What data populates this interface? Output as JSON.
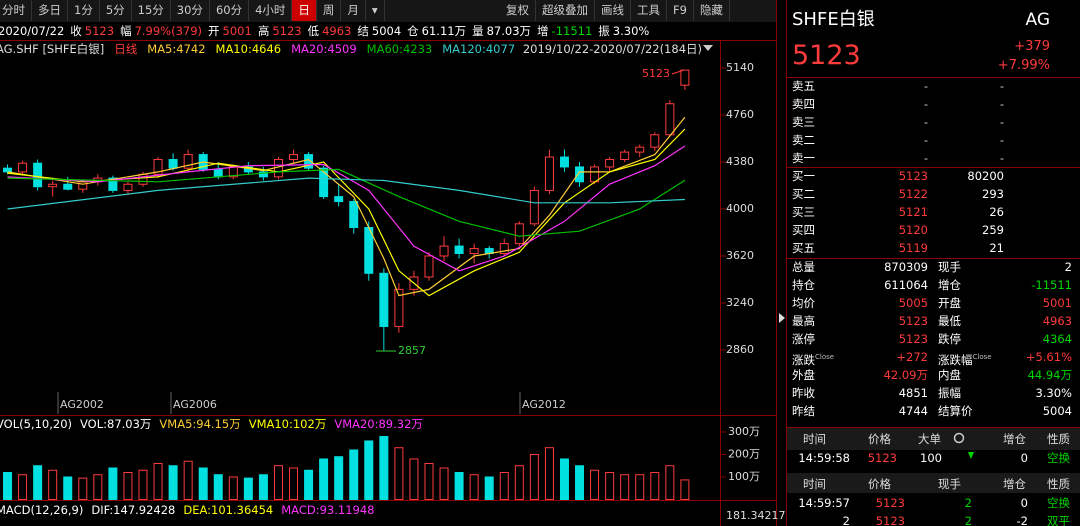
{
  "toolbar": {
    "left": [
      "分时",
      "多日",
      "1分",
      "5分",
      "15分",
      "30分",
      "60分",
      "4小时",
      "日",
      "周",
      "月",
      "▾"
    ],
    "active_index": 8,
    "right": [
      "复权",
      "超级叠加",
      "画线",
      "工具",
      "F9",
      "隐藏"
    ]
  },
  "info_bar": {
    "date": "2020/07/22",
    "items": [
      {
        "label": "收",
        "value": "5123",
        "color": "#ff3b3b"
      },
      {
        "label": "幅",
        "value": "7.99%(379)",
        "color": "#ff3b3b"
      },
      {
        "label": "开",
        "value": "5001",
        "color": "#ff3b3b"
      },
      {
        "label": "高",
        "value": "5123",
        "color": "#ff3b3b"
      },
      {
        "label": "低",
        "value": "4963",
        "color": "#ff3b3b"
      },
      {
        "label": "结",
        "value": "5004",
        "color": "#ffffff"
      },
      {
        "label": "仓",
        "value": "61.11万",
        "color": "#ffffff"
      },
      {
        "label": "量",
        "value": "87.03万",
        "color": "#ffffff"
      },
      {
        "label": "增",
        "value": "-11511",
        "color": "#00d800"
      },
      {
        "label": "振",
        "value": "3.30%",
        "color": "#ffffff"
      }
    ]
  },
  "chart_data": [
    {
      "type": "candlestick",
      "title": "AG.SHF [SHFE白银]",
      "period": "日线",
      "period_color": "#ff3b3b",
      "date_range": "2019/10/22-2020/07/22(184日)",
      "up_color": "#ff3b3b",
      "down_color": "#00e0e0",
      "ylim": [
        2698,
        5237
      ],
      "yticks": [
        2860,
        3240,
        3620,
        4000,
        4380,
        4760,
        5140
      ],
      "xlim": [
        -0.5,
        47.2
      ],
      "grid": false,
      "candles": [
        [
          4330,
          4360,
          4280,
          4300
        ],
        [
          4300,
          4390,
          4280,
          4370
        ],
        [
          4370,
          4400,
          4150,
          4180
        ],
        [
          4180,
          4230,
          4100,
          4200
        ],
        [
          4200,
          4260,
          4150,
          4160
        ],
        [
          4160,
          4240,
          4130,
          4220
        ],
        [
          4220,
          4280,
          4190,
          4250
        ],
        [
          4250,
          4270,
          4130,
          4150
        ],
        [
          4150,
          4220,
          4120,
          4200
        ],
        [
          4200,
          4300,
          4180,
          4280
        ],
        [
          4280,
          4420,
          4250,
          4400
        ],
        [
          4400,
          4450,
          4310,
          4330
        ],
        [
          4330,
          4480,
          4300,
          4440
        ],
        [
          4440,
          4460,
          4300,
          4320
        ],
        [
          4320,
          4380,
          4240,
          4260
        ],
        [
          4260,
          4360,
          4240,
          4340
        ],
        [
          4340,
          4380,
          4280,
          4300
        ],
        [
          4300,
          4340,
          4230,
          4260
        ],
        [
          4260,
          4420,
          4240,
          4400
        ],
        [
          4400,
          4480,
          4370,
          4440
        ],
        [
          4440,
          4460,
          4310,
          4330
        ],
        [
          4330,
          4350,
          4080,
          4100
        ],
        [
          4100,
          4200,
          4020,
          4060
        ],
        [
          4060,
          4080,
          3800,
          3850
        ],
        [
          3850,
          3900,
          3420,
          3480
        ],
        [
          3480,
          3520,
          2857,
          3050
        ],
        [
          3050,
          3400,
          3000,
          3350
        ],
        [
          3350,
          3500,
          3300,
          3450
        ],
        [
          3450,
          3650,
          3420,
          3620
        ],
        [
          3620,
          3780,
          3580,
          3700
        ],
        [
          3700,
          3760,
          3600,
          3640
        ],
        [
          3640,
          3720,
          3560,
          3680
        ],
        [
          3680,
          3700,
          3600,
          3640
        ],
        [
          3640,
          3760,
          3620,
          3720
        ],
        [
          3720,
          3900,
          3700,
          3880
        ],
        [
          3880,
          4180,
          3860,
          4150
        ],
        [
          4150,
          4480,
          4120,
          4420
        ],
        [
          4420,
          4480,
          4300,
          4340
        ],
        [
          4340,
          4380,
          4180,
          4220
        ],
        [
          4220,
          4360,
          4200,
          4340
        ],
        [
          4340,
          4420,
          4300,
          4400
        ],
        [
          4400,
          4480,
          4380,
          4460
        ],
        [
          4460,
          4520,
          4420,
          4500
        ],
        [
          4500,
          4620,
          4470,
          4600
        ],
        [
          4600,
          4880,
          4580,
          4851
        ],
        [
          5001,
          5123,
          4963,
          5123
        ]
      ],
      "series": [
        {
          "name": "MA5:4742",
          "color": "#ffcc33",
          "x": [
            0,
            5,
            10,
            13,
            17,
            20,
            23,
            25,
            26,
            28,
            31,
            34,
            36,
            38,
            40,
            43,
            45
          ],
          "values": [
            4300,
            4200,
            4300,
            4380,
            4310,
            4400,
            4100,
            3600,
            3300,
            3350,
            3620,
            3680,
            3950,
            4300,
            4300,
            4440,
            4742
          ]
        },
        {
          "name": "MA10:4646",
          "color": "#ffff00",
          "x": [
            0,
            5,
            10,
            14,
            18,
            21,
            24,
            26,
            28,
            31,
            34,
            37,
            40,
            43,
            45
          ],
          "values": [
            4290,
            4220,
            4260,
            4370,
            4300,
            4380,
            4000,
            3500,
            3300,
            3500,
            3650,
            4050,
            4300,
            4400,
            4646
          ]
        },
        {
          "name": "MA20:4509",
          "color": "#ff33ff",
          "x": [
            0,
            6,
            12,
            16,
            21,
            24,
            27,
            30,
            33,
            37,
            40,
            43,
            45
          ],
          "values": [
            4260,
            4220,
            4300,
            4350,
            4360,
            4150,
            3700,
            3500,
            3620,
            3900,
            4200,
            4350,
            4509
          ]
        },
        {
          "name": "MA60:4233",
          "color": "#00c000",
          "x": [
            0,
            10,
            18,
            22,
            26,
            30,
            34,
            38,
            42,
            45
          ],
          "values": [
            4250,
            4220,
            4300,
            4320,
            4100,
            3900,
            3780,
            3820,
            4000,
            4233
          ]
        },
        {
          "name": "MA120:4077",
          "color": "#33cccc",
          "x": [
            0,
            10,
            20,
            25,
            30,
            35,
            40,
            45
          ],
          "values": [
            4000,
            4150,
            4250,
            4230,
            4150,
            4050,
            4050,
            4077
          ]
        }
      ],
      "annotations": [
        "5123",
        "2857"
      ],
      "contract_labels": [
        "AG2002",
        "AG2006",
        "AG2012"
      ]
    },
    {
      "type": "bar",
      "title": "VOL(5,10,20)",
      "legend": [
        {
          "name": "VOL:87.03万",
          "color": "#ffffff"
        },
        {
          "name": "VMA5:94.15万",
          "color": "#ffcc33"
        },
        {
          "name": "VMA10:102万",
          "color": "#ffff00"
        },
        {
          "name": "VMA20:89.32万",
          "color": "#ff33ff"
        }
      ],
      "values": [
        120,
        110,
        150,
        130,
        100,
        95,
        110,
        140,
        120,
        130,
        160,
        150,
        170,
        140,
        110,
        100,
        95,
        110,
        150,
        140,
        130,
        180,
        190,
        220,
        260,
        280,
        230,
        180,
        160,
        140,
        120,
        110,
        100,
        120,
        150,
        200,
        230,
        180,
        150,
        130,
        120,
        110,
        110,
        120,
        150,
        87.03
      ],
      "ylim": [
        0,
        362
      ],
      "yticks": [
        {
          "value": 100,
          "label": "100万"
        },
        {
          "value": 200,
          "label": "200万"
        },
        {
          "value": 300,
          "label": "300万"
        }
      ]
    },
    {
      "type": "macd",
      "title": "MACD(12,26,9)",
      "legend": [
        {
          "name": "DIF:147.92428",
          "color": "#ffffff"
        },
        {
          "name": "DEA:101.36454",
          "color": "#ffff00"
        },
        {
          "name": "MACD:93.11948",
          "color": "#ff33ff"
        }
      ],
      "top_value": 181.34217
    }
  ],
  "quote_panel": {
    "name": "SHFE白银",
    "code": "AG",
    "price": "5123",
    "change": "+379",
    "change_pct": "+7.99%",
    "order_book": [
      {
        "label": "卖五",
        "price": "-",
        "volume": "-"
      },
      {
        "label": "卖四",
        "price": "-",
        "volume": "-"
      },
      {
        "label": "卖三",
        "price": "-",
        "volume": "-"
      },
      {
        "label": "卖二",
        "price": "-",
        "volume": "-"
      },
      {
        "label": "卖一",
        "price": "-",
        "volume": "-"
      },
      {
        "label": "买一",
        "price": "5123",
        "volume": "80200"
      },
      {
        "label": "买二",
        "price": "5122",
        "volume": "293"
      },
      {
        "label": "买三",
        "price": "5121",
        "volume": "26"
      },
      {
        "label": "买四",
        "price": "5120",
        "volume": "259"
      },
      {
        "label": "买五",
        "price": "5119",
        "volume": "21"
      }
    ],
    "stats": [
      {
        "label": "总量",
        "value": "870309",
        "color": "#ffffff",
        "label2": "现手",
        "value2": "2",
        "color2": "#ffffff"
      },
      {
        "label": "持仓",
        "value": "611064",
        "color": "#ffffff",
        "label2": "增仓",
        "value2": "-11511",
        "color2": "#00d800"
      },
      {
        "label": "均价",
        "value": "5005",
        "color": "#ff3b3b",
        "label2": "开盘",
        "value2": "5001",
        "color2": "#ff3b3b"
      },
      {
        "label": "最高",
        "value": "5123",
        "color": "#ff3b3b",
        "label2": "最低",
        "value2": "4963",
        "color2": "#ff3b3b"
      },
      {
        "label": "涨停",
        "value": "5123",
        "color": "#ff3b3b",
        "label2": "跌停",
        "value2": "4364",
        "color2": "#00d800"
      },
      {
        "label": "涨跌",
        "sup": "Close",
        "value": "+272",
        "color": "#ff3b3b",
        "label2": "涨跌幅",
        "sup2": "Close",
        "value2": "+5.61%",
        "color2": "#ff3b3b"
      },
      {
        "label": "外盘",
        "value": "42.09万",
        "color": "#ff3b3b",
        "label2": "内盘",
        "value2": "44.94万",
        "color2": "#00d800"
      },
      {
        "label": "昨收",
        "value": "4851",
        "color": "#ffffff",
        "label2": "振幅",
        "value2": "3.30%",
        "color2": "#ffffff"
      },
      {
        "label": "昨结",
        "value": "4744",
        "color": "#ffffff",
        "label2": "结算价",
        "value2": "5004",
        "color2": "#ffffff"
      }
    ],
    "trades_header": [
      "时间",
      "价格",
      "大单",
      "增仓",
      "性质"
    ],
    "big_trade": {
      "time": "14:59:58",
      "price": "5123",
      "size": "100",
      "oi": "0",
      "kind": "空换"
    },
    "ticks_header": [
      "时间",
      "价格",
      "现手",
      "增仓",
      "性质"
    ],
    "ticks": [
      {
        "time": "14:59:57",
        "price": "5123",
        "size": "2",
        "oi": "0",
        "kind": "空换"
      },
      {
        "time": "2",
        "price": "5123",
        "size": "2",
        "oi": "-2",
        "kind": "双平"
      }
    ]
  }
}
